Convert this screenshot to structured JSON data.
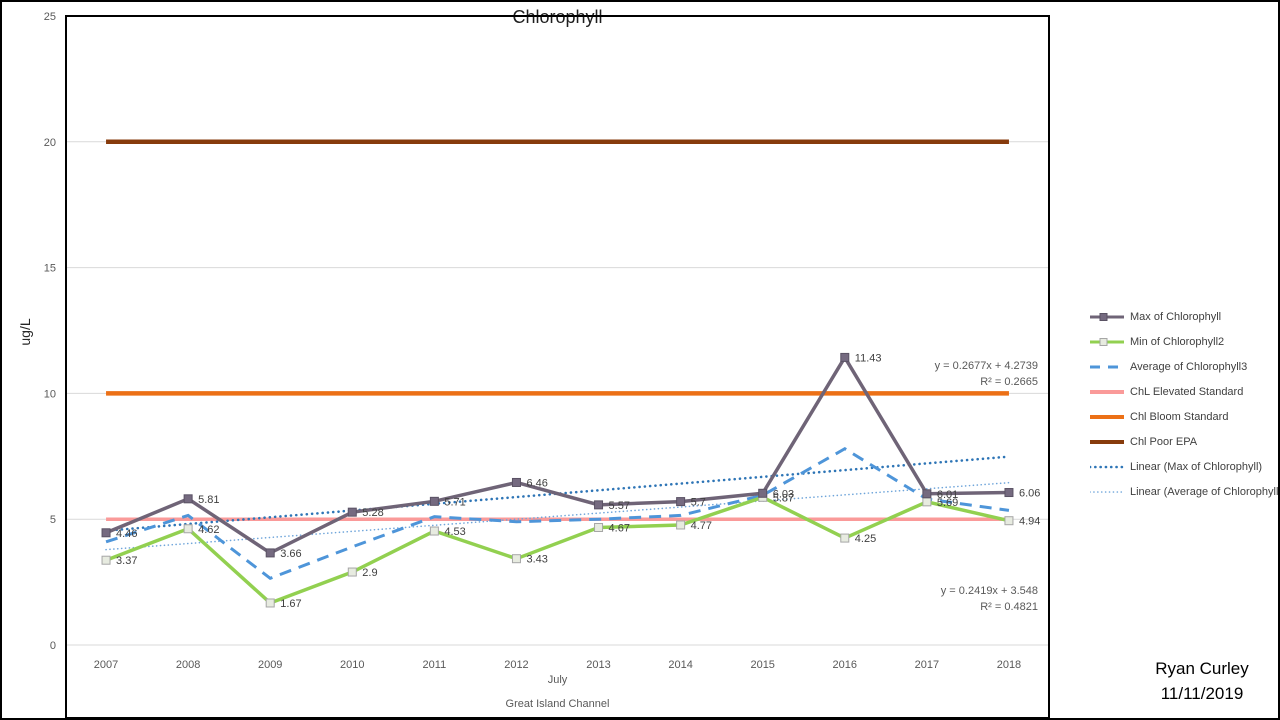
{
  "footer": {
    "author": "Ryan Curley",
    "date": "11/11/2019"
  },
  "x_axis": {
    "group_label": "July",
    "axis_label": "Great Island Channel"
  },
  "chart_data": {
    "type": "line",
    "title": "Chlorophyll",
    "ylabel": "ug/L",
    "ylim": [
      0,
      25
    ],
    "y_ticks": [
      0,
      5,
      10,
      15,
      20,
      25
    ],
    "grid": true,
    "legend_position": "right",
    "categories": [
      "2007",
      "2008",
      "2009",
      "2010",
      "2011",
      "2012",
      "2013",
      "2014",
      "2015",
      "2016",
      "2017",
      "2018"
    ],
    "x_group_label": "July",
    "x_axis_label": "Great Island Channel",
    "series": [
      {
        "name": "Max of Chlorophyll",
        "kind": "line",
        "style": "solid",
        "color": "#6F6477",
        "marker": "square",
        "marker_fill": "#756A80",
        "marker_stroke": "#5A5264",
        "values": [
          4.46,
          5.81,
          3.66,
          5.28,
          5.71,
          6.46,
          5.57,
          5.7,
          6.03,
          11.43,
          6.01,
          6.06
        ],
        "data_labels": [
          "4.46",
          "5.81",
          "3.66",
          "5.28",
          "5.71",
          "6.46",
          "5.57",
          "5.7",
          "6.03",
          "11.43",
          "6.01",
          "6.06"
        ]
      },
      {
        "name": "Min of Chlorophyll2",
        "kind": "line",
        "style": "solid",
        "color": "#92D050",
        "marker": "square",
        "marker_fill": "#E7EBE0",
        "marker_stroke": "#A6A6A6",
        "values": [
          3.37,
          4.62,
          1.67,
          2.9,
          4.53,
          3.43,
          4.67,
          4.77,
          5.87,
          4.25,
          5.69,
          4.94
        ],
        "data_labels": [
          "3.37",
          "4.62",
          "1.67",
          "2.9",
          "4.53",
          "3.43",
          "4.67",
          "4.77",
          "5.87",
          "4.25",
          "5.69",
          "4.94"
        ]
      },
      {
        "name": "Average of Chlorophyll3",
        "kind": "line",
        "style": "dashed",
        "color": "#4E95D9",
        "values": [
          4.1,
          5.15,
          2.65,
          3.9,
          5.1,
          4.9,
          5.0,
          5.15,
          5.95,
          7.8,
          5.8,
          5.35
        ],
        "values_estimated": true
      },
      {
        "name": "ChL Elevated Standard",
        "kind": "constant",
        "color": "#FA9A99",
        "value": 5
      },
      {
        "name": "Chl Bloom Standard",
        "kind": "constant",
        "color": "#EC7016",
        "value": 10
      },
      {
        "name": "Chl Poor EPA",
        "kind": "constant",
        "color": "#873B0C",
        "value": 20
      },
      {
        "name": "Linear (Max of Chlorophyll)",
        "kind": "trend",
        "style": "dotted",
        "color": "#2E75B6",
        "slope": 0.2677,
        "intercept": 4.2739,
        "equation": "y = 0.2677x + 4.2739",
        "r2": "R² = 0.2665"
      },
      {
        "name": "Linear (Average of Chlorophyll3)",
        "kind": "trend",
        "style": "dotted-fine",
        "color": "#6FA5DA",
        "slope": 0.2419,
        "intercept": 3.548,
        "equation": "y = 0.2419x + 3.548",
        "r2": "R² = 0.4821"
      }
    ]
  }
}
